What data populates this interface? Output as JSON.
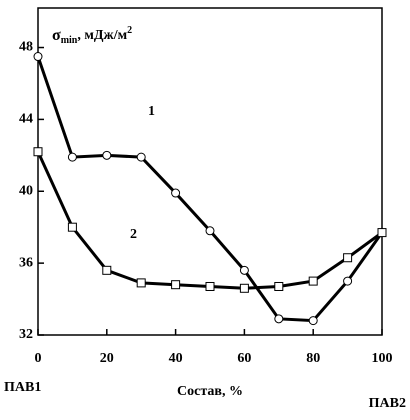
{
  "chart_data": {
    "type": "line",
    "ylabel": {
      "symbol": "σ",
      "sub": "min",
      "unit": ", мДж/м",
      "sup": "2"
    },
    "xlabel": "Состав, %",
    "left_label": "ПАВ1",
    "right_label": "ПАВ2",
    "x": [
      0,
      10,
      20,
      30,
      40,
      50,
      60,
      70,
      80,
      90,
      100
    ],
    "series": [
      {
        "name": "1",
        "color": "#000000",
        "marker": "circle",
        "values": [
          47.5,
          41.9,
          42.0,
          41.9,
          39.9,
          37.8,
          35.6,
          32.9,
          32.8,
          35.0,
          37.7
        ]
      },
      {
        "name": "2",
        "color": "#000000",
        "marker": "square",
        "values": [
          42.2,
          38.0,
          35.6,
          34.9,
          34.8,
          34.7,
          34.6,
          34.7,
          35.0,
          36.3,
          37.7
        ]
      }
    ],
    "xlim": [
      0,
      100
    ],
    "xticks": [
      0,
      20,
      40,
      60,
      80,
      100
    ],
    "ylim": [
      32,
      50.2
    ],
    "yticks": [
      32,
      36,
      40,
      44,
      48
    ],
    "grid": false
  }
}
